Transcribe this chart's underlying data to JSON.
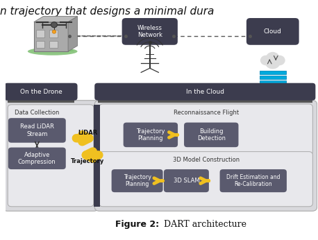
{
  "title_text": "Figure 2:",
  "title_suffix": " DART architecture",
  "bg_color": "#ffffff",
  "header_text_top": "n trajectory that designs a minimal dura",
  "label_on_drone": "On the Drone",
  "label_in_cloud": "In the Cloud",
  "label_data_collection": "Data Collection",
  "label_read_lidar": "Read LiDAR\nStream",
  "label_adaptive": "Adaptive\nCompression",
  "label_lidar": "LiDAR",
  "label_trajectory": "Trajectory",
  "label_recon": "Reconnaissance Flight",
  "label_traj_planning1": "Trajectory\nPlanning",
  "label_building": "Building\nDetection",
  "label_3d_model": "3D Model Construction",
  "label_traj_planning2": "Trajectory\nPlanning",
  "label_3d_slam": "3D SLAM",
  "label_drift": "Drift Estimation and\nRe-Calibration",
  "label_wireless": "Wireless\nNetwork",
  "label_cloud": "Cloud",
  "dark_box_color": "#3c3c4e",
  "light_box_color": "#d4d4d8",
  "inner_box_color": "#5a5a6e",
  "arrow_color": "#f0c020",
  "dashed_line_color": "#555555",
  "white_box_color": "#f5f5f5",
  "text_light": "#ffffff",
  "text_dark": "#1a1a1a",
  "figure_bg": "#f8f8f8"
}
